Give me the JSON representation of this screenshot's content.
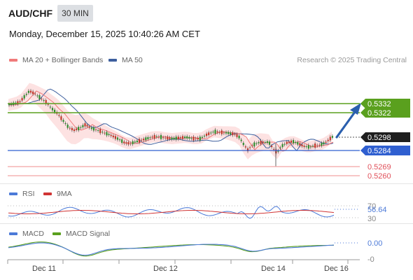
{
  "header": {
    "symbol": "AUD/CHF",
    "timeframe": "30 MIN",
    "datetime": "Monday, December 15, 2025 10:40:26 AM CET"
  },
  "legend": {
    "ma20_label": "MA 20 + Bollinger Bands",
    "ma50_label": "MA 50",
    "credit": "Research © 2025 Trading Central"
  },
  "colors": {
    "ma20": "#f07a7a",
    "ma50": "#3d5f9e",
    "bollinger": "#fde2e2",
    "resistance": "#5aa01e",
    "support_blue": "#2f5fd0",
    "support_red": "#e0505a",
    "candle_up": "#2f8f2f",
    "candle_down": "#c0392b",
    "rsi": "#4c7ad8",
    "rsi_ma": "#d03434",
    "macd": "#4c7ad8",
    "macd_signal": "#5aa01e",
    "arrow": "#2a5fae"
  },
  "icons": {
    "trend_arrow": "arrow-up-right-icon"
  },
  "price_levels": [
    {
      "label": "0.5332",
      "style": "green-filled"
    },
    {
      "label": "0.5322",
      "style": "green-filled"
    },
    {
      "label": "0.5298",
      "style": "last-price"
    },
    {
      "label": "0.5284",
      "style": "blue-filled"
    },
    {
      "label": "0.5269",
      "style": "red-text"
    },
    {
      "label": "0.5260",
      "style": "red-text"
    }
  ],
  "rsi": {
    "label": "RSI",
    "ma_label": "9MA",
    "ticks": [
      "70",
      "30"
    ],
    "value": "56.64"
  },
  "macd": {
    "label": "MACD",
    "signal_label": "MACD Signal",
    "value": "0.00",
    "zero_tick": "-0"
  },
  "xaxis": {
    "labels": [
      "Dec 11",
      "Dec 12",
      "Dec 14",
      "Dec 16"
    ]
  }
}
